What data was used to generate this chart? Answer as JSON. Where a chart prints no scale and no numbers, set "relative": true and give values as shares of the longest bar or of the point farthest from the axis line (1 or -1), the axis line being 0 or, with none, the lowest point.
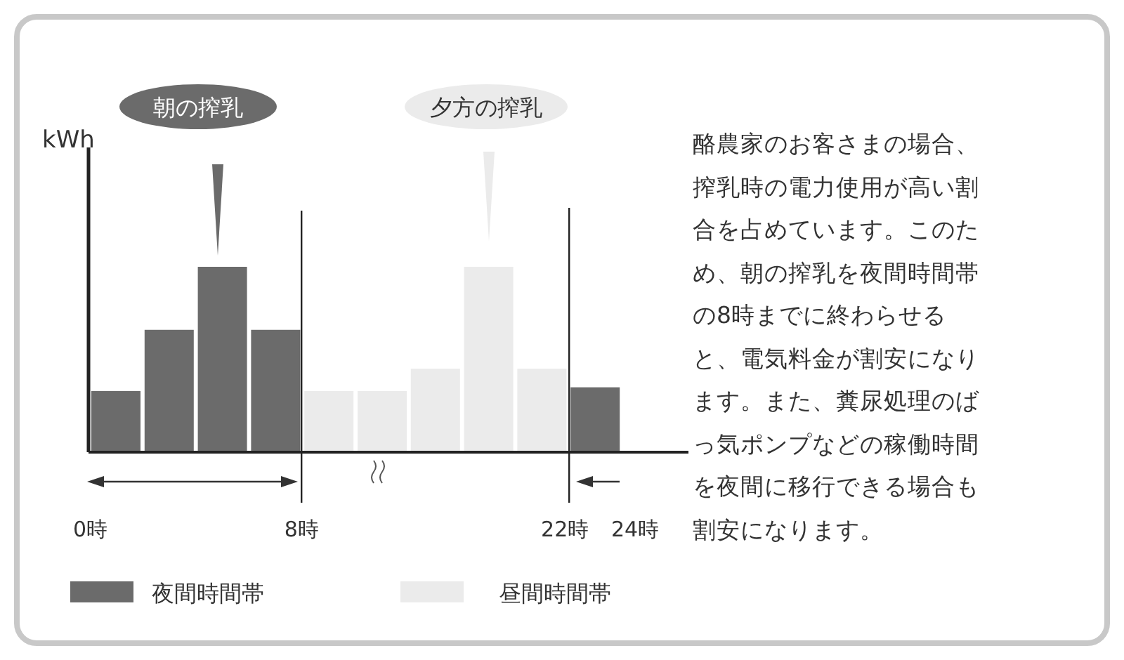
{
  "chart_data": {
    "type": "bar",
    "relative": true,
    "ylabel": "kWh",
    "categories": [
      null,
      null,
      null,
      null,
      null,
      null,
      null,
      null,
      null,
      null
    ],
    "series": [
      {
        "name": "夜間時間帯",
        "color": "#6b6b6b",
        "values": [
          0.33,
          0.66,
          1,
          0.66,
          0,
          0,
          0,
          0,
          0,
          0.35
        ]
      },
      {
        "name": "昼間時間帯",
        "color": "#ebebeb",
        "values": [
          0,
          0,
          0,
          0,
          0.33,
          0.33,
          0.45,
          1,
          0.45,
          0
        ]
      }
    ],
    "stacked": true,
    "legend": "bottom",
    "annotations": [
      "朝の搾乳",
      "夕方の搾乳",
      "0時",
      "8時",
      "22時",
      "24時",
      "酪農家のお客さまの場合、搾乳時の電力使用が高い割合を占めています。このため、朝の搾乳を夜間時間帯の8時までに終わらせると、電気料金が割安になります。また、糞尿処理のばっ気ポンプなどの稼働時間を夜間に移行できる場合も割安になります。"
    ]
  }
}
